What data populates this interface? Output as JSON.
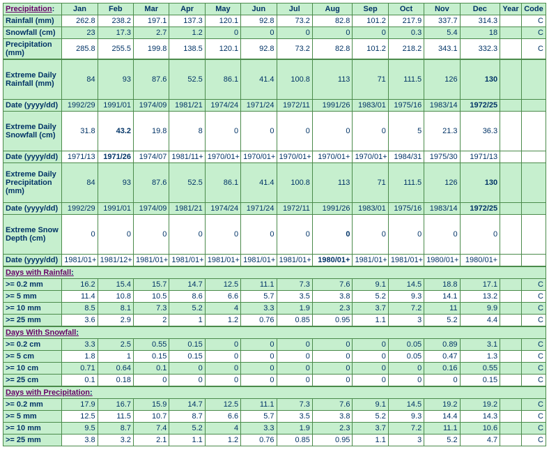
{
  "header": {
    "corner": "Precipitation",
    "months": [
      "Jan",
      "Feb",
      "Mar",
      "Apr",
      "May",
      "Jun",
      "Jul",
      "Aug",
      "Sep",
      "Oct",
      "Nov",
      "Dec"
    ],
    "year": "Year",
    "code": "Code"
  },
  "rows": [
    {
      "label": "Rainfall (mm)",
      "bg": "white",
      "vals": [
        "262.8",
        "238.2",
        "197.1",
        "137.3",
        "120.1",
        "92.8",
        "73.2",
        "82.8",
        "101.2",
        "217.9",
        "337.7",
        "314.3",
        "",
        "C"
      ]
    },
    {
      "label": "Snowfall (cm)",
      "bg": "green",
      "vals": [
        "23",
        "17.3",
        "2.7",
        "1.2",
        "0",
        "0",
        "0",
        "0",
        "0",
        "0.3",
        "5.4",
        "18",
        "",
        "C"
      ]
    },
    {
      "label": "Precipitation (mm)",
      "bg": "white",
      "vals": [
        "285.8",
        "255.5",
        "199.8",
        "138.5",
        "120.1",
        "92.8",
        "73.2",
        "82.8",
        "101.2",
        "218.2",
        "343.1",
        "332.3",
        "",
        "C"
      ]
    },
    {
      "label": "Extreme Daily Rainfall (mm)",
      "bg": "green",
      "tall": true,
      "topBorder": true,
      "vals": [
        "84",
        "93",
        "87.6",
        "52.5",
        "86.1",
        "41.4",
        "100.8",
        "113",
        "71",
        "111.5",
        "126",
        "130",
        "",
        ""
      ],
      "bold": [
        11
      ]
    },
    {
      "label": "Date (yyyy/dd)",
      "bg": "green",
      "vals": [
        "1992/29",
        "1991/01",
        "1974/09",
        "1981/21",
        "1974/24",
        "1971/24",
        "1972/11",
        "1991/26",
        "1983/01",
        "1975/16",
        "1983/14",
        "1972/25",
        "",
        ""
      ],
      "bold": [
        11
      ]
    },
    {
      "label": "Extreme Daily Snowfall (cm)",
      "bg": "white",
      "tall": true,
      "vals": [
        "31.8",
        "43.2",
        "19.8",
        "8",
        "0",
        "0",
        "0",
        "0",
        "0",
        "5",
        "21.3",
        "36.3",
        "",
        ""
      ],
      "bold": [
        1
      ]
    },
    {
      "label": "Date (yyyy/dd)",
      "bg": "white",
      "vals": [
        "1971/13",
        "1971/26",
        "1974/07",
        "1981/11+",
        "1970/01+",
        "1970/01+",
        "1970/01+",
        "1970/01+",
        "1970/01+",
        "1984/31",
        "1975/30",
        "1971/13",
        "",
        ""
      ],
      "bold": [
        1
      ]
    },
    {
      "label": "Extreme Daily Precipitation (mm)",
      "bg": "green",
      "tall": true,
      "vals": [
        "84",
        "93",
        "87.6",
        "52.5",
        "86.1",
        "41.4",
        "100.8",
        "113",
        "71",
        "111.5",
        "126",
        "130",
        "",
        ""
      ],
      "bold": [
        11
      ]
    },
    {
      "label": "Date (yyyy/dd)",
      "bg": "green",
      "vals": [
        "1992/29",
        "1991/01",
        "1974/09",
        "1981/21",
        "1974/24",
        "1971/24",
        "1972/11",
        "1991/26",
        "1983/01",
        "1975/16",
        "1983/14",
        "1972/25",
        "",
        ""
      ],
      "bold": [
        11
      ]
    },
    {
      "label": "Extreme Snow Depth (cm)",
      "bg": "white",
      "tall": true,
      "vals": [
        "0",
        "0",
        "0",
        "0",
        "0",
        "0",
        "0",
        "0",
        "0",
        "0",
        "0",
        "0",
        "",
        ""
      ],
      "bold": [
        7
      ]
    },
    {
      "label": "Date (yyyy/dd)",
      "bg": "white",
      "vals": [
        "1981/01+",
        "1981/12+",
        "1981/01+",
        "1981/01+",
        "1981/01+",
        "1981/01+",
        "1981/01+",
        "1980/01+",
        "1981/01+",
        "1981/01+",
        "1980/01+",
        "1980/01+",
        "",
        ""
      ],
      "bold": [
        7
      ]
    }
  ],
  "sections": [
    {
      "title": "Days with Rainfall",
      "rows": [
        {
          "label": ">= 0.2 mm",
          "bg": "green",
          "vals": [
            "16.2",
            "15.4",
            "15.7",
            "14.7",
            "12.5",
            "11.1",
            "7.3",
            "7.6",
            "9.1",
            "14.5",
            "18.8",
            "17.1",
            "",
            "C"
          ]
        },
        {
          "label": ">= 5 mm",
          "bg": "white",
          "vals": [
            "11.4",
            "10.8",
            "10.5",
            "8.6",
            "6.6",
            "5.7",
            "3.5",
            "3.8",
            "5.2",
            "9.3",
            "14.1",
            "13.2",
            "",
            "C"
          ]
        },
        {
          "label": ">= 10 mm",
          "bg": "green",
          "vals": [
            "8.5",
            "8.1",
            "7.3",
            "5.2",
            "4",
            "3.3",
            "1.9",
            "2.3",
            "3.7",
            "7.2",
            "11",
            "9.9",
            "",
            "C"
          ]
        },
        {
          "label": ">= 25 mm",
          "bg": "white",
          "vals": [
            "3.6",
            "2.9",
            "2",
            "1",
            "1.2",
            "0.76",
            "0.85",
            "0.95",
            "1.1",
            "3",
            "5.2",
            "4.4",
            "",
            "C"
          ]
        }
      ]
    },
    {
      "title": "Days With Snowfall",
      "rows": [
        {
          "label": ">= 0.2 cm",
          "bg": "green",
          "vals": [
            "3.3",
            "2.5",
            "0.55",
            "0.15",
            "0",
            "0",
            "0",
            "0",
            "0",
            "0.05",
            "0.89",
            "3.1",
            "",
            "C"
          ]
        },
        {
          "label": ">= 5 cm",
          "bg": "white",
          "vals": [
            "1.8",
            "1",
            "0.15",
            "0.15",
            "0",
            "0",
            "0",
            "0",
            "0",
            "0.05",
            "0.47",
            "1.3",
            "",
            "C"
          ]
        },
        {
          "label": ">= 10 cm",
          "bg": "green",
          "vals": [
            "0.71",
            "0.64",
            "0.1",
            "0",
            "0",
            "0",
            "0",
            "0",
            "0",
            "0",
            "0.16",
            "0.55",
            "",
            "C"
          ]
        },
        {
          "label": ">= 25 cm",
          "bg": "white",
          "vals": [
            "0.1",
            "0.18",
            "0",
            "0",
            "0",
            "0",
            "0",
            "0",
            "0",
            "0",
            "0",
            "0.15",
            "",
            "C"
          ]
        }
      ]
    },
    {
      "title": "Days with Precipitation",
      "rows": [
        {
          "label": ">= 0.2 mm",
          "bg": "green",
          "vals": [
            "17.9",
            "16.7",
            "15.9",
            "14.7",
            "12.5",
            "11.1",
            "7.3",
            "7.6",
            "9.1",
            "14.5",
            "19.2",
            "19.2",
            "",
            "C"
          ]
        },
        {
          "label": ">= 5 mm",
          "bg": "white",
          "vals": [
            "12.5",
            "11.5",
            "10.7",
            "8.7",
            "6.6",
            "5.7",
            "3.5",
            "3.8",
            "5.2",
            "9.3",
            "14.4",
            "14.3",
            "",
            "C"
          ]
        },
        {
          "label": ">= 10 mm",
          "bg": "green",
          "vals": [
            "9.5",
            "8.7",
            "7.4",
            "5.2",
            "4",
            "3.3",
            "1.9",
            "2.3",
            "3.7",
            "7.2",
            "11.1",
            "10.6",
            "",
            "C"
          ]
        },
        {
          "label": ">= 25 mm",
          "bg": "white",
          "vals": [
            "3.8",
            "3.2",
            "2.1",
            "1.1",
            "1.2",
            "0.76",
            "0.85",
            "0.95",
            "1.1",
            "3",
            "5.2",
            "4.7",
            "",
            "C"
          ]
        }
      ]
    }
  ]
}
